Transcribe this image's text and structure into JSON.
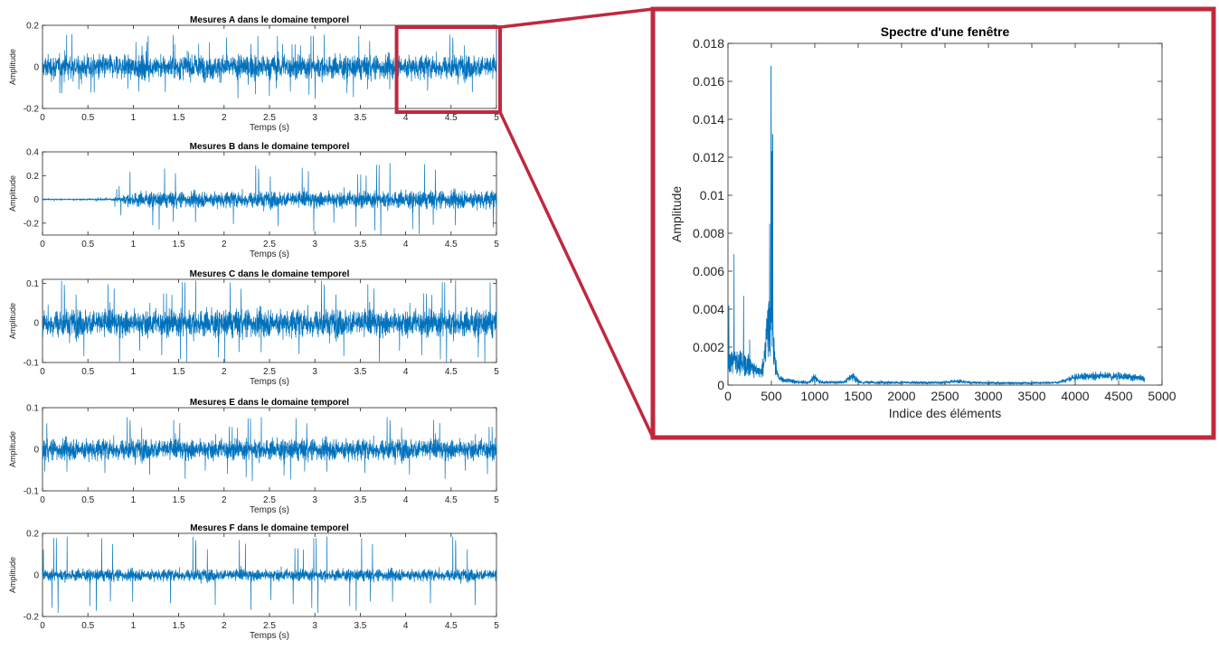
{
  "colors": {
    "series": "#0072BD",
    "highlight": "#C0283E",
    "axes": "#262626",
    "background": "#ffffff"
  },
  "chart_data": [
    {
      "type": "line",
      "title": "Mesures A dans le domaine temporel",
      "xlabel": "Temps (s)",
      "ylabel": "Amplitude",
      "xlim": [
        0,
        5
      ],
      "ylim": [
        -0.2,
        0.2
      ],
      "xticks": [
        "0",
        "0.5",
        "1",
        "1.5",
        "2",
        "2.5",
        "3",
        "3.5",
        "4",
        "4.5",
        "5"
      ],
      "yticks": [
        "-0.2",
        "0",
        "0.2"
      ],
      "ytick_values": [
        -0.2,
        0,
        0.2
      ],
      "grid": false,
      "signal": {
        "envelope": [
          [
            0,
            0.09
          ],
          [
            5,
            0.09
          ]
        ],
        "peak": 0.16,
        "duration_s": 5
      },
      "highlight_window": {
        "x": [
          3.95,
          5.0
        ],
        "label": ""
      }
    },
    {
      "type": "line",
      "title": "Mesures B dans le domaine temporel",
      "xlabel": "Temps (s)",
      "ylabel": "Amplitude",
      "xlim": [
        0,
        5
      ],
      "ylim": [
        -0.3,
        0.4
      ],
      "xticks": [
        "0",
        "0.5",
        "1",
        "1.5",
        "2",
        "2.5",
        "3",
        "3.5",
        "4",
        "4.5",
        "5"
      ],
      "yticks": [
        "-0.2",
        "0",
        "0.2",
        "0.4"
      ],
      "ytick_values": [
        -0.2,
        0,
        0.2,
        0.4
      ],
      "grid": false,
      "signal": {
        "envelope": [
          [
            0,
            0.005
          ],
          [
            0.75,
            0.01
          ],
          [
            1.0,
            0.1
          ],
          [
            5,
            0.12
          ]
        ],
        "peak": 0.33,
        "duration_s": 5
      }
    },
    {
      "type": "line",
      "title": "Mesures C dans le domaine temporel",
      "xlabel": "Temps (s)",
      "ylabel": "Amplitude",
      "xlim": [
        0,
        5
      ],
      "ylim": [
        -0.1,
        0.11
      ],
      "xticks": [
        "0",
        "0.5",
        "1",
        "1.5",
        "2",
        "2.5",
        "3",
        "3.5",
        "4",
        "4.5",
        "5"
      ],
      "yticks": [
        "-0.1",
        "0",
        "0.1"
      ],
      "ytick_values": [
        -0.1,
        0,
        0.1
      ],
      "grid": false,
      "signal": {
        "envelope": [
          [
            0,
            0.055
          ],
          [
            5,
            0.055
          ]
        ],
        "peak": 0.11,
        "duration_s": 5
      }
    },
    {
      "type": "line",
      "title": "Mesures E dans le domaine temporel",
      "xlabel": "Temps (s)",
      "ylabel": "Amplitude",
      "xlim": [
        0,
        5
      ],
      "ylim": [
        -0.1,
        0.1
      ],
      "xticks": [
        "0",
        "0.5",
        "1",
        "1.5",
        "2",
        "2.5",
        "3",
        "3.5",
        "4",
        "4.5",
        "5"
      ],
      "yticks": [
        "-0.1",
        "0",
        "0.1"
      ],
      "ytick_values": [
        -0.1,
        0,
        0.1
      ],
      "grid": false,
      "signal": {
        "envelope": [
          [
            0,
            0.04
          ],
          [
            5,
            0.04
          ]
        ],
        "peak": 0.08,
        "duration_s": 5
      }
    },
    {
      "type": "line",
      "title": "Mesures F dans le domaine temporel",
      "xlabel": "Temps (s)",
      "ylabel": "Amplitude",
      "xlim": [
        0,
        5
      ],
      "ylim": [
        -0.2,
        0.2
      ],
      "xticks": [
        "0",
        "0.5",
        "1",
        "1.5",
        "2",
        "2.5",
        "3",
        "3.5",
        "4",
        "4.5",
        "5"
      ],
      "yticks": [
        "-0.2",
        "0",
        "0.2"
      ],
      "ytick_values": [
        -0.2,
        0,
        0.2
      ],
      "grid": false,
      "signal": {
        "envelope": [
          [
            0,
            0.045
          ],
          [
            5,
            0.045
          ]
        ],
        "peak": 0.19,
        "duration_s": 5
      }
    },
    {
      "type": "line",
      "title": "Spectre d'une fenêtre",
      "xlabel": "Indice des éléments",
      "ylabel": "Amplitude",
      "xlim": [
        0,
        5000
      ],
      "ylim": [
        0,
        0.018
      ],
      "xticks": [
        "0",
        "500",
        "1000",
        "1500",
        "2000",
        "2500",
        "3000",
        "3500",
        "4000",
        "4500",
        "5000"
      ],
      "yticks": [
        "0",
        "0.002",
        "0.004",
        "0.006",
        "0.008",
        "0.01",
        "0.012",
        "0.014",
        "0.016",
        "0.018"
      ],
      "ytick_values": [
        0,
        0.002,
        0.004,
        0.006,
        0.008,
        0.01,
        0.012,
        0.014,
        0.016,
        0.018
      ],
      "grid": false,
      "n_points": 4800,
      "baseline": [
        [
          0,
          0.0003
        ],
        [
          600,
          0.0003
        ],
        [
          800,
          0.00015
        ],
        [
          3800,
          0.0001
        ],
        [
          4000,
          0.0003
        ],
        [
          4800,
          0.0003
        ]
      ],
      "bumps": [
        {
          "x": 120,
          "width": 250,
          "height": 0.0009
        },
        {
          "x": 480,
          "width": 60,
          "height": 0.0025
        },
        {
          "x": 1000,
          "width": 40,
          "height": 0.0003
        },
        {
          "x": 1430,
          "width": 60,
          "height": 0.0003
        },
        {
          "x": 2650,
          "width": 100,
          "height": 0.0001
        },
        {
          "x": 4300,
          "width": 400,
          "height": 0.0002
        }
      ],
      "peaks": [
        {
          "x": 10,
          "y": 0.0042
        },
        {
          "x": 70,
          "y": 0.0069
        },
        {
          "x": 180,
          "y": 0.0047
        },
        {
          "x": 250,
          "y": 0.0024
        },
        {
          "x": 480,
          "y": 0.0085
        },
        {
          "x": 497,
          "y": 0.0168
        },
        {
          "x": 505,
          "y": 0.0123
        },
        {
          "x": 515,
          "y": 0.0132
        },
        {
          "x": 530,
          "y": 0.0025
        }
      ]
    }
  ]
}
